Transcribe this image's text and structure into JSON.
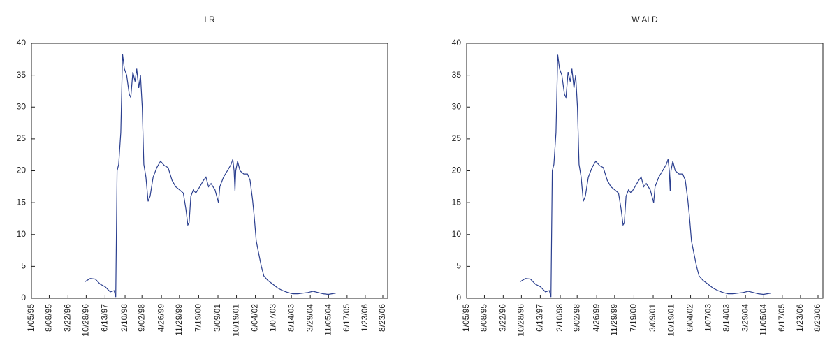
{
  "chart_data": [
    {
      "type": "line",
      "title": "LR",
      "xlim": [
        "1/05/95",
        "10/21/06"
      ],
      "xticks": [
        "1/05/95",
        "8/08/95",
        "3/22/96",
        "10/28/96",
        "6/13/97",
        "2/10/98",
        "9/02/98",
        "4/26/99",
        "11/29/99",
        "7/19/00",
        "3/09/01",
        "10/19/01",
        "6/04/02",
        "1/07/03",
        "8/14/03",
        "3/29/04",
        "11/05/04",
        "6/17/05",
        "1/23/06",
        "8/23/06"
      ],
      "ylim": [
        0,
        40
      ],
      "yticks": [
        0,
        5,
        10,
        15,
        20,
        25,
        30,
        35,
        40
      ],
      "grid": false,
      "x": [
        "10/15/96",
        "12/15/96",
        "2/15/97",
        "4/15/97",
        "6/15/97",
        "8/15/97",
        "10/01/97",
        "10/20/97",
        "11/05/97",
        "11/25/97",
        "12/20/97",
        "1/10/98",
        "2/01/98",
        "3/01/98",
        "4/01/98",
        "4/20/98",
        "5/15/98",
        "6/10/98",
        "7/01/98",
        "7/25/98",
        "8/15/98",
        "9/05/98",
        "9/25/98",
        "10/20/98",
        "11/15/98",
        "12/10/98",
        "1/15/99",
        "3/01/99",
        "4/15/99",
        "6/01/99",
        "7/15/99",
        "9/01/99",
        "10/15/99",
        "12/01/99",
        "1/15/00",
        "2/15/00",
        "3/10/00",
        "3/25/00",
        "4/15/00",
        "5/15/00",
        "6/15/00",
        "8/01/00",
        "9/15/00",
        "10/15/00",
        "11/15/00",
        "12/15/00",
        "2/01/01",
        "3/15/01",
        "4/01/01",
        "5/15/01",
        "7/01/01",
        "8/15/01",
        "9/05/01",
        "9/20/01",
        "10/01/01",
        "10/10/01",
        "11/01/01",
        "12/01/01",
        "1/15/02",
        "3/01/02",
        "4/01/02",
        "5/01/02",
        "5/20/02",
        "6/15/02",
        "7/15/02",
        "8/15/02",
        "9/15/02",
        "11/01/02",
        "1/01/03",
        "3/01/03",
        "5/01/03",
        "7/01/03",
        "9/01/03",
        "11/01/03",
        "1/01/04",
        "3/01/04",
        "5/01/04",
        "7/01/04",
        "9/01/04",
        "11/01/04",
        "12/15/04",
        "2/01/05"
      ],
      "series": [
        {
          "color": "#2b3f8f",
          "values": [
            2.6,
            3.1,
            3.0,
            2.2,
            1.8,
            1.0,
            1.2,
            0.2,
            20,
            21,
            26,
            38.3,
            36,
            35,
            32,
            31.5,
            35.5,
            34,
            36,
            33,
            35,
            30,
            21,
            19,
            15.2,
            16,
            19,
            20.5,
            21.5,
            20.8,
            20.5,
            18.5,
            17.5,
            17,
            16.5,
            14,
            11.5,
            11.8,
            16,
            17,
            16.5,
            17.5,
            18.5,
            19,
            17.5,
            18,
            17,
            15,
            17.5,
            19,
            20,
            21,
            21.8,
            20,
            16.8,
            20,
            21.5,
            20,
            19.5,
            19.5,
            18.5,
            15.5,
            13,
            9,
            7,
            5,
            3.5,
            2.8,
            2.2,
            1.6,
            1.2,
            0.9,
            0.7,
            0.7,
            0.8,
            0.9,
            1.1,
            0.9,
            0.7,
            0.6,
            0.7,
            0.8
          ]
        }
      ]
    },
    {
      "type": "line",
      "title": "W ALD",
      "xlim": [
        "1/05/95",
        "10/21/06"
      ],
      "xticks": [
        "1/05/95",
        "8/08/95",
        "3/22/96",
        "10/28/96",
        "6/13/97",
        "2/10/98",
        "9/02/98",
        "4/26/99",
        "11/29/99",
        "7/19/00",
        "3/09/01",
        "10/19/01",
        "6/04/02",
        "1/07/03",
        "8/14/03",
        "3/29/04",
        "11/05/04",
        "6/17/05",
        "1/23/06",
        "8/23/06"
      ],
      "ylim": [
        0,
        40
      ],
      "yticks": [
        0,
        5,
        10,
        15,
        20,
        25,
        30,
        35,
        40
      ],
      "grid": false,
      "x": [
        "10/15/96",
        "12/15/96",
        "2/15/97",
        "4/15/97",
        "6/15/97",
        "8/15/97",
        "10/01/97",
        "10/20/97",
        "11/05/97",
        "11/25/97",
        "12/20/97",
        "1/10/98",
        "2/01/98",
        "3/01/98",
        "4/01/98",
        "4/20/98",
        "5/15/98",
        "6/10/98",
        "7/01/98",
        "7/25/98",
        "8/15/98",
        "9/05/98",
        "9/25/98",
        "10/20/98",
        "11/15/98",
        "12/10/98",
        "1/15/99",
        "3/01/99",
        "4/15/99",
        "6/01/99",
        "7/15/99",
        "9/01/99",
        "10/15/99",
        "12/01/99",
        "1/15/00",
        "2/15/00",
        "3/10/00",
        "3/25/00",
        "4/15/00",
        "5/15/00",
        "6/15/00",
        "8/01/00",
        "9/15/00",
        "10/15/00",
        "11/15/00",
        "12/15/00",
        "2/01/01",
        "3/15/01",
        "4/01/01",
        "5/15/01",
        "7/01/01",
        "8/15/01",
        "9/05/01",
        "9/20/01",
        "10/01/01",
        "10/10/01",
        "11/01/01",
        "12/01/01",
        "1/15/02",
        "3/01/02",
        "4/01/02",
        "5/01/02",
        "5/20/02",
        "6/15/02",
        "7/15/02",
        "8/15/02",
        "9/15/02",
        "11/01/02",
        "1/01/03",
        "3/01/03",
        "5/01/03",
        "7/01/03",
        "9/01/03",
        "11/01/03",
        "1/01/04",
        "3/01/04",
        "5/01/04",
        "7/01/04",
        "9/01/04",
        "11/01/04",
        "12/15/04",
        "2/01/05"
      ],
      "series": [
        {
          "color": "#2b3f8f",
          "values": [
            2.6,
            3.1,
            3.0,
            2.2,
            1.8,
            1.0,
            1.2,
            0.2,
            20,
            21,
            26,
            38.2,
            36,
            35,
            32,
            31.5,
            35.5,
            34,
            36,
            33,
            35,
            30,
            21,
            19,
            15.2,
            16,
            19,
            20.5,
            21.5,
            20.8,
            20.5,
            18.5,
            17.5,
            17,
            16.5,
            14,
            11.5,
            11.8,
            16,
            17,
            16.5,
            17.5,
            18.5,
            19,
            17.5,
            18,
            17,
            15,
            17.5,
            19,
            20,
            21,
            21.8,
            20,
            16.8,
            20,
            21.5,
            20,
            19.5,
            19.5,
            18.5,
            15.5,
            13,
            9,
            7,
            5,
            3.5,
            2.8,
            2.2,
            1.6,
            1.2,
            0.9,
            0.7,
            0.7,
            0.8,
            0.9,
            1.1,
            0.9,
            0.7,
            0.6,
            0.7,
            0.8
          ]
        }
      ]
    }
  ]
}
